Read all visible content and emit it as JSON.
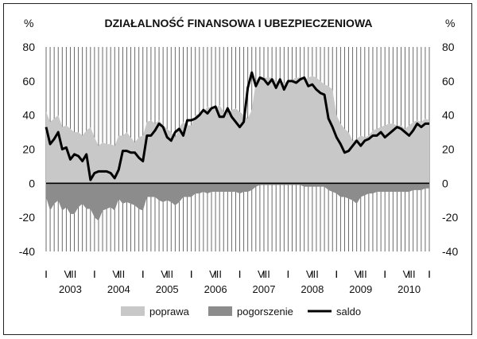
{
  "chart_data": {
    "type": "area",
    "title": "DZIAŁALNOŚĆ FINANSOWA I UBEZPIECZENIOWA",
    "unit_left": "%",
    "unit_right": "%",
    "ylim": [
      -40,
      80
    ],
    "yticks": [
      "80",
      "60",
      "40",
      "20",
      "0",
      "-20",
      "-40"
    ],
    "ytick_values": [
      80,
      60,
      40,
      20,
      0,
      -20,
      -40
    ],
    "x_month_labels": [
      "I",
      "VII",
      "I",
      "VII",
      "I",
      "VII",
      "I",
      "VII",
      "I",
      "VII",
      "I",
      "VII",
      "I",
      "VII",
      "I",
      "VII",
      "I"
    ],
    "x_month_index": [
      0,
      6,
      12,
      18,
      24,
      30,
      36,
      42,
      48,
      54,
      60,
      66,
      72,
      78,
      84,
      90,
      96
    ],
    "years": [
      "2003",
      "2004",
      "2005",
      "2006",
      "2007",
      "2008",
      "2009",
      "2010"
    ],
    "year_month_index": [
      6,
      18,
      30,
      42,
      54,
      66,
      78,
      90
    ],
    "n_months": 96,
    "grid": true,
    "legend_position": "bottom",
    "series": [
      {
        "name": "poprawa",
        "kind": "area-positive",
        "color": "#c8c8c8",
        "values": [
          42,
          36,
          38,
          40,
          33,
          34,
          32,
          30,
          30,
          28,
          31,
          33,
          27,
          22,
          24,
          23,
          23,
          22,
          28,
          28,
          30,
          27,
          24,
          27,
          28,
          36,
          37,
          35,
          37,
          34,
          32,
          30,
          27,
          33,
          36,
          34,
          34,
          40,
          41,
          42,
          45,
          44,
          44,
          46,
          42,
          40,
          43,
          44,
          42,
          40,
          38,
          43,
          60,
          63,
          62,
          62,
          62,
          60,
          60,
          59,
          60,
          61,
          62,
          62,
          61,
          62,
          63,
          62,
          60,
          58,
          57,
          55,
          40,
          35,
          32,
          30,
          25,
          26,
          28,
          27,
          28,
          31,
          32,
          33,
          34,
          35,
          35,
          34,
          34,
          32,
          34,
          36,
          37,
          36,
          38,
          37
        ]
      },
      {
        "name": "pogorszenie",
        "kind": "area-negative",
        "color": "#8c8c8c",
        "values": [
          -8,
          -16,
          -12,
          -10,
          -16,
          -14,
          -18,
          -18,
          -14,
          -12,
          -15,
          -15,
          -20,
          -22,
          -16,
          -15,
          -14,
          -16,
          -9,
          -12,
          -11,
          -12,
          -13,
          -15,
          -16,
          -8,
          -8,
          -8,
          -10,
          -11,
          -10,
          -11,
          -13,
          -11,
          -8,
          -8,
          -8,
          -6,
          -6,
          -5,
          -6,
          -5,
          -5,
          -5,
          -5,
          -5,
          -5,
          -5,
          -6,
          -5,
          -5,
          -4,
          -2,
          -1,
          -1,
          -1,
          -1,
          -1,
          -1,
          -1,
          -1,
          -1,
          -1,
          -1,
          -2,
          -2,
          -2,
          -2,
          -2,
          -2,
          -4,
          -5,
          -6,
          -8,
          -8,
          -9,
          -10,
          -12,
          -8,
          -7,
          -6,
          -6,
          -5,
          -5,
          -5,
          -5,
          -5,
          -5,
          -5,
          -5,
          -5,
          -4,
          -4,
          -4,
          -3,
          -3
        ]
      },
      {
        "name": "saldo",
        "kind": "line",
        "color": "#000000",
        "values": [
          33,
          23,
          26,
          30,
          20,
          21,
          14,
          17,
          16,
          13,
          17,
          2,
          6,
          7,
          7,
          7,
          6,
          3,
          8,
          19,
          19,
          18,
          18,
          15,
          13,
          28,
          28,
          31,
          35,
          33,
          27,
          25,
          30,
          32,
          28,
          37,
          37,
          38,
          40,
          43,
          41,
          44,
          45,
          39,
          39,
          44,
          39,
          36,
          33,
          36,
          56,
          65,
          57,
          62,
          61,
          58,
          61,
          56,
          61,
          55,
          60,
          60,
          59,
          61,
          62,
          57,
          58,
          55,
          53,
          52,
          38,
          33,
          27,
          23,
          18,
          19,
          22,
          25,
          22,
          25,
          26,
          28,
          28,
          30,
          27,
          29,
          31,
          33,
          32,
          30,
          28,
          31,
          35,
          33,
          35,
          35
        ]
      }
    ]
  }
}
